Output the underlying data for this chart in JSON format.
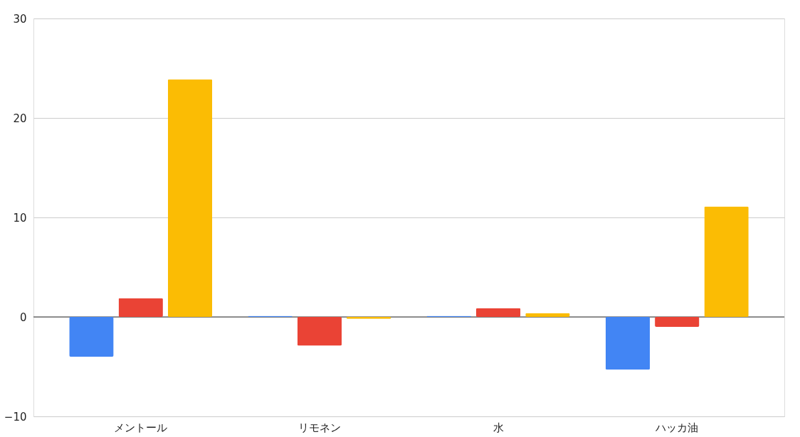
{
  "chart_data": {
    "type": "bar",
    "categories": [
      "メントール",
      "リモネン",
      "水",
      "ハッカ油"
    ],
    "series": [
      {
        "color": "#4285f4",
        "values": [
          -4.0,
          0.1,
          0.1,
          -5.3
        ]
      },
      {
        "color": "#ea4335",
        "values": [
          1.9,
          -2.9,
          0.9,
          -1.0
        ]
      },
      {
        "color": "#fbbc04",
        "values": [
          23.9,
          -0.2,
          0.4,
          11.1
        ]
      }
    ],
    "ylim": [
      -10,
      30
    ],
    "yticks": [
      -10,
      0,
      10,
      20,
      30
    ],
    "grid": "y",
    "legend": false,
    "ref_lines": [
      {
        "axis": "y",
        "value": 0,
        "color": "#333333"
      }
    ]
  }
}
